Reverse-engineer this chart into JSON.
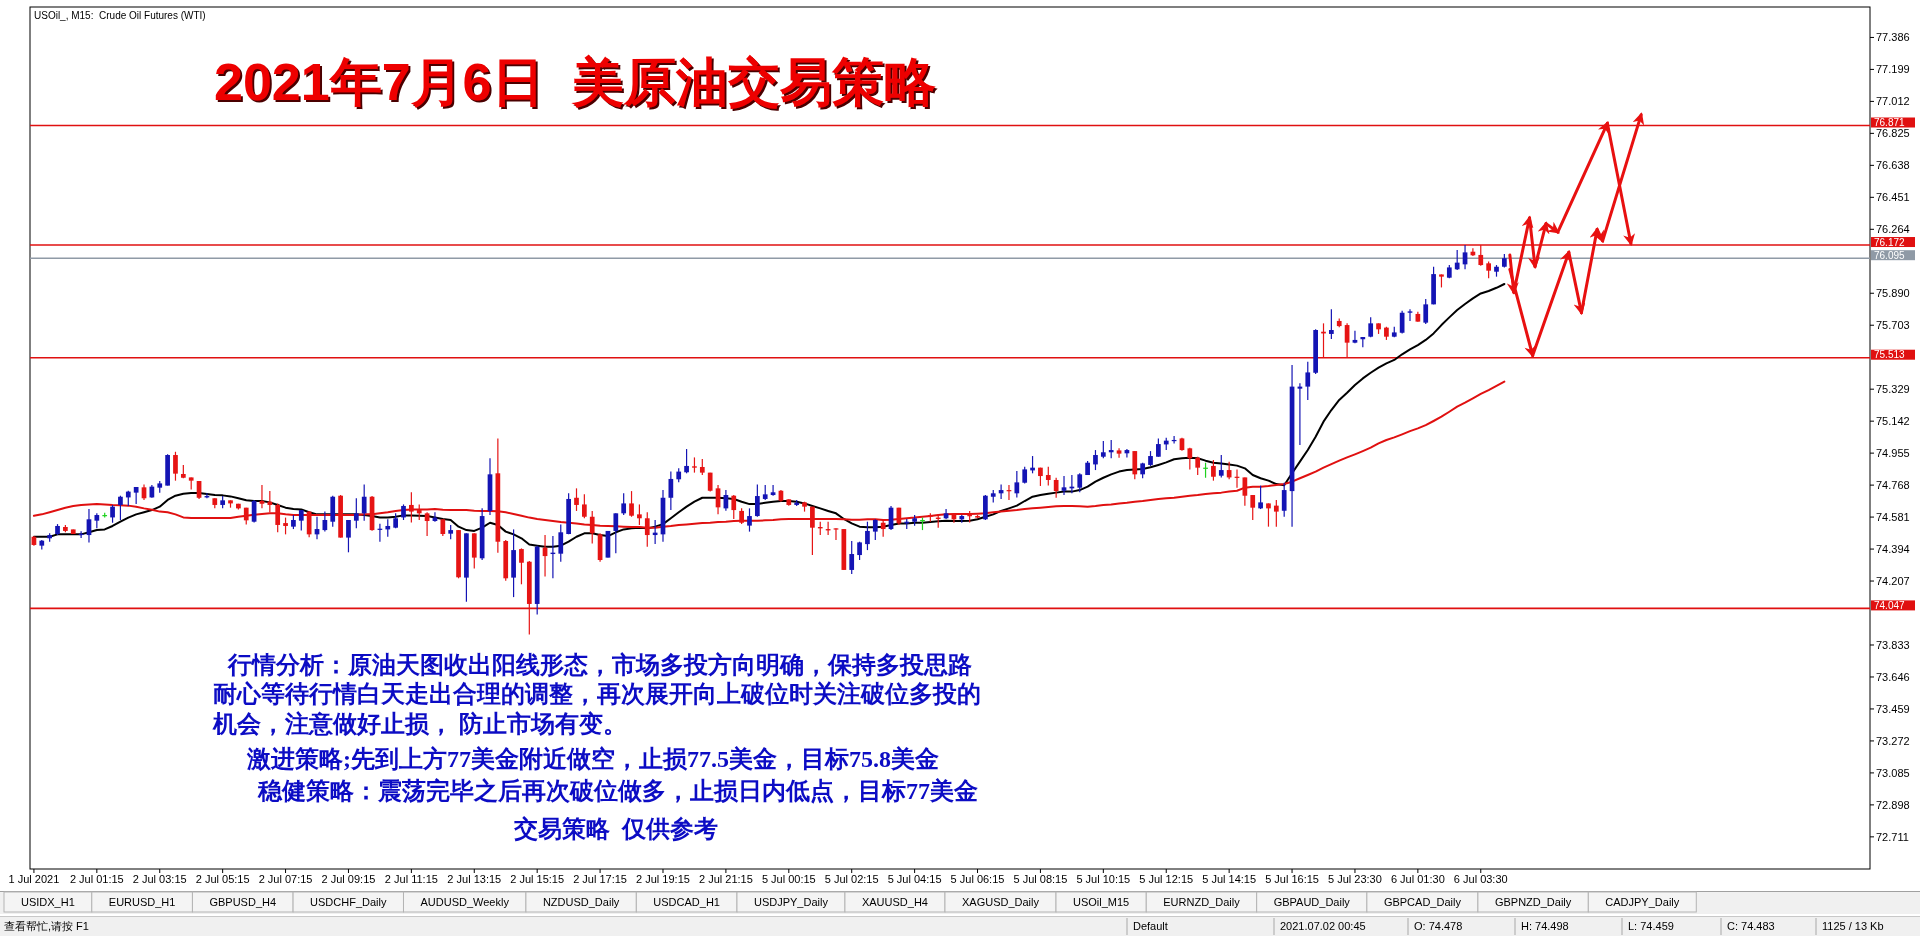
{
  "chart_data": {
    "type": "candlestick",
    "title": "2021年7月6日  美原油交易策略",
    "subtitle": "USOil_, M15:  Crude Oil Futures (WTI)",
    "categories": [
      "1 Jul 2021",
      null,
      null,
      null,
      null,
      null,
      null,
      null,
      "2 Jul 01:15",
      null,
      null,
      null,
      null,
      null,
      null,
      null,
      "2 Jul 03:15",
      null,
      null,
      null,
      null,
      null,
      null,
      null,
      "2 Jul 05:15",
      null,
      null,
      null,
      null,
      null,
      null,
      null,
      "2 Jul 07:15",
      null,
      null,
      null,
      null,
      null,
      null,
      null,
      "2 Jul 09:15",
      null,
      null,
      null,
      null,
      null,
      null,
      null,
      "2 Jul 11:15",
      null,
      null,
      null,
      null,
      null,
      null,
      null,
      "2 Jul 13:15",
      null,
      null,
      null,
      null,
      null,
      null,
      null,
      "2 Jul 15:15",
      null,
      null,
      null,
      null,
      null,
      null,
      null,
      "2 Jul 17:15",
      null,
      null,
      null,
      null,
      null,
      null,
      null,
      "2 Jul 19:15",
      null,
      null,
      null,
      null,
      null,
      null,
      null,
      "2 Jul 21:15",
      null,
      null,
      null,
      null,
      null,
      null,
      null,
      "5 Jul 00:15",
      null,
      null,
      null,
      null,
      null,
      null,
      null,
      "5 Jul 02:15",
      null,
      null,
      null,
      null,
      null,
      null,
      null,
      "5 Jul 04:15",
      null,
      null,
      null,
      null,
      null,
      null,
      null,
      "5 Jul 06:15",
      null,
      null,
      null,
      null,
      null,
      null,
      null,
      "5 Jul 08:15",
      null,
      null,
      null,
      null,
      null,
      null,
      null,
      "5 Jul 10:15",
      null,
      null,
      null,
      null,
      null,
      null,
      null,
      "5 Jul 12:15",
      null,
      null,
      null,
      null,
      null,
      null,
      null,
      "5 Jul 14:15",
      null,
      null,
      null,
      null,
      null,
      null,
      null,
      "5 Jul 16:15",
      null,
      null,
      null,
      null,
      null,
      null,
      null,
      "5 Jul 23:30",
      null,
      null,
      null,
      null,
      null,
      null,
      null,
      "6 Jul 01:30",
      null,
      null,
      null,
      null,
      null,
      null,
      null,
      "6 Jul 03:30",
      null,
      null,
      null,
      null,
      null,
      null,
      null,
      null,
      null,
      null,
      null,
      null,
      null,
      null,
      null,
      null,
      null,
      null,
      null,
      null,
      null,
      null,
      null,
      null,
      null,
      null,
      null,
      null,
      null,
      null,
      null,
      null,
      null,
      null,
      null,
      null,
      null,
      null,
      null,
      null,
      null,
      null,
      null,
      null,
      null,
      null,
      null,
      null,
      null
    ],
    "ohlc": [
      [
        74.466,
        74.47,
        74.414,
        74.418
      ],
      [
        74.414,
        74.447,
        74.392,
        74.443
      ],
      [
        74.457,
        74.486,
        74.437,
        74.476
      ],
      [
        74.482,
        74.54,
        74.476,
        74.529
      ],
      [
        74.523,
        74.535,
        74.492,
        74.5
      ],
      [
        74.509,
        74.509,
        74.482,
        74.482
      ],
      [
        74.478,
        74.498,
        74.459,
        74.483
      ],
      [
        74.476,
        74.628,
        74.433,
        74.568
      ],
      [
        74.56,
        74.603,
        74.515,
        74.593
      ],
      [
        74.593,
        74.607,
        74.578,
        74.593
      ],
      [
        74.579,
        74.652,
        74.548,
        74.642
      ],
      [
        74.652,
        74.706,
        74.564,
        74.7
      ],
      [
        74.696,
        74.735,
        74.646,
        74.73
      ],
      [
        74.724,
        74.757,
        74.657,
        74.757
      ],
      [
        74.755,
        74.772,
        74.681,
        74.691
      ],
      [
        74.696,
        74.768,
        74.694,
        74.759
      ],
      [
        74.753,
        74.792,
        74.724,
        74.778
      ],
      [
        74.765,
        74.948,
        74.765,
        74.944
      ],
      [
        74.944,
        74.963,
        74.794,
        74.835
      ],
      [
        74.833,
        74.886,
        74.808,
        74.811
      ],
      [
        74.813,
        74.813,
        74.743,
        74.794
      ],
      [
        74.792,
        74.792,
        74.687,
        74.694
      ],
      [
        74.696,
        74.72,
        74.691,
        74.704
      ],
      [
        74.691,
        74.691,
        74.632,
        74.652
      ],
      [
        74.652,
        74.704,
        74.632,
        74.679
      ],
      [
        74.679,
        74.679,
        74.636,
        74.661
      ],
      [
        74.659,
        74.659,
        74.626,
        74.632
      ],
      [
        74.636,
        74.636,
        74.538,
        74.562
      ],
      [
        74.554,
        74.681,
        74.55,
        74.675
      ],
      [
        74.675,
        74.768,
        74.632,
        74.659
      ],
      [
        74.671,
        74.733,
        74.609,
        74.652
      ],
      [
        74.652,
        74.661,
        74.492,
        74.535
      ],
      [
        74.546,
        74.578,
        74.48,
        74.529
      ],
      [
        74.525,
        74.593,
        74.511,
        74.564
      ],
      [
        74.56,
        74.622,
        74.503,
        74.622
      ],
      [
        74.613,
        74.617,
        74.463,
        74.48
      ],
      [
        74.48,
        74.583,
        74.451,
        74.511
      ],
      [
        74.505,
        74.613,
        74.496,
        74.564
      ],
      [
        74.554,
        74.706,
        74.525,
        74.7
      ],
      [
        74.706,
        74.71,
        74.461,
        74.461
      ],
      [
        74.461,
        74.564,
        74.375,
        74.564
      ],
      [
        74.56,
        74.691,
        74.515,
        74.603
      ],
      [
        74.603,
        74.772,
        74.56,
        74.7
      ],
      [
        74.7,
        74.704,
        74.501,
        74.505
      ],
      [
        74.507,
        74.542,
        74.437,
        74.513
      ],
      [
        74.509,
        74.568,
        74.466,
        74.529
      ],
      [
        74.519,
        74.603,
        74.515,
        74.574
      ],
      [
        74.579,
        74.655,
        74.564,
        74.646
      ],
      [
        74.652,
        74.726,
        74.55,
        74.613
      ],
      [
        74.622,
        74.655,
        74.564,
        74.603
      ],
      [
        74.603,
        74.609,
        74.47,
        74.558
      ],
      [
        74.558,
        74.609,
        74.554,
        74.578
      ],
      [
        74.568,
        74.568,
        74.47,
        74.482
      ],
      [
        74.484,
        74.535,
        74.451,
        74.505
      ],
      [
        74.505,
        74.505,
        74.223,
        74.229
      ],
      [
        74.227,
        74.486,
        74.086,
        74.486
      ],
      [
        74.486,
        74.486,
        74.281,
        74.344
      ],
      [
        74.34,
        74.632,
        74.33,
        74.587
      ],
      [
        74.617,
        74.925,
        74.593,
        74.831
      ],
      [
        74.837,
        75.041,
        74.373,
        74.437
      ],
      [
        74.441,
        74.447,
        74.209,
        74.223
      ],
      [
        74.227,
        74.509,
        74.113,
        74.388
      ],
      [
        74.394,
        74.398,
        74.188,
        74.314
      ],
      [
        74.32,
        74.324,
        73.895,
        74.073
      ],
      [
        74.073,
        74.414,
        74.012,
        74.408
      ],
      [
        74.402,
        74.476,
        74.233,
        74.353
      ],
      [
        74.365,
        74.47,
        74.223,
        74.373
      ],
      [
        74.367,
        74.538,
        74.32,
        74.492
      ],
      [
        74.482,
        74.72,
        74.48,
        74.687
      ],
      [
        74.694,
        74.749,
        74.617,
        74.652
      ],
      [
        74.655,
        74.714,
        74.574,
        74.583
      ],
      [
        74.583,
        74.617,
        74.427,
        74.486
      ],
      [
        74.48,
        74.486,
        74.32,
        74.33
      ],
      [
        74.344,
        74.5,
        74.344,
        74.5
      ],
      [
        74.5,
        74.603,
        74.369,
        74.603
      ],
      [
        74.603,
        74.72,
        74.593,
        74.661
      ],
      [
        74.661,
        74.733,
        74.583,
        74.589
      ],
      [
        74.597,
        74.655,
        74.535,
        74.574
      ],
      [
        74.574,
        74.609,
        74.408,
        74.476
      ],
      [
        74.476,
        74.564,
        74.423,
        74.49
      ],
      [
        74.48,
        74.739,
        74.437,
        74.694
      ],
      [
        74.694,
        74.847,
        74.622,
        74.804
      ],
      [
        74.802,
        74.866,
        74.784,
        74.847
      ],
      [
        74.843,
        74.979,
        74.837,
        74.88
      ],
      [
        74.878,
        74.93,
        74.841,
        74.87
      ],
      [
        74.874,
        74.921,
        74.827,
        74.841
      ],
      [
        74.841,
        74.841,
        74.73,
        74.735
      ],
      [
        74.749,
        74.768,
        74.597,
        74.638
      ],
      [
        74.632,
        74.739,
        74.618,
        74.71
      ],
      [
        74.706,
        74.71,
        74.57,
        74.622
      ],
      [
        74.617,
        74.632,
        74.54,
        74.548
      ],
      [
        74.531,
        74.632,
        74.496,
        74.587
      ],
      [
        74.587,
        74.772,
        74.583,
        74.704
      ],
      [
        74.687,
        74.768,
        74.681,
        74.714
      ],
      [
        74.71,
        74.768,
        74.706,
        74.726
      ],
      [
        74.735,
        74.739,
        74.671,
        74.677
      ],
      [
        74.685,
        74.685,
        74.648,
        74.652
      ],
      [
        74.652,
        74.681,
        74.646,
        74.665
      ],
      [
        74.667,
        74.671,
        74.613,
        74.642
      ],
      [
        74.642,
        74.642,
        74.359,
        74.519
      ],
      [
        74.523,
        74.554,
        74.476,
        74.515
      ],
      [
        74.511,
        74.554,
        74.476,
        74.503
      ],
      [
        74.515,
        74.515,
        74.447,
        74.509
      ],
      [
        74.511,
        74.511,
        74.272,
        74.272
      ],
      [
        74.272,
        74.441,
        74.248,
        74.365
      ],
      [
        74.359,
        74.437,
        74.33,
        74.433
      ],
      [
        74.423,
        74.554,
        74.388,
        74.5
      ],
      [
        74.496,
        74.568,
        74.447,
        74.564
      ],
      [
        74.548,
        74.568,
        74.466,
        74.511
      ],
      [
        74.511,
        74.646,
        74.505,
        74.636
      ],
      [
        74.636,
        74.636,
        74.535,
        74.544
      ],
      [
        74.544,
        74.57,
        74.511,
        74.554
      ],
      [
        74.554,
        74.593,
        74.531,
        74.574
      ],
      [
        74.564,
        74.578,
        74.505,
        74.564
      ],
      [
        74.593,
        74.603,
        74.554,
        74.583
      ],
      [
        74.578,
        74.597,
        74.519,
        74.57
      ],
      [
        74.574,
        74.628,
        74.57,
        74.603
      ],
      [
        74.597,
        74.603,
        74.548,
        74.568
      ],
      [
        74.568,
        74.593,
        74.548,
        74.587
      ],
      [
        74.593,
        74.617,
        74.55,
        74.587
      ],
      [
        74.587,
        74.593,
        74.574,
        74.578
      ],
      [
        74.568,
        74.71,
        74.564,
        74.706
      ],
      [
        74.7,
        74.739,
        74.667,
        74.72
      ],
      [
        74.72,
        74.772,
        74.687,
        74.739
      ],
      [
        74.739,
        74.768,
        74.681,
        74.733
      ],
      [
        74.72,
        74.85,
        74.696,
        74.784
      ],
      [
        74.782,
        74.876,
        74.778,
        74.86
      ],
      [
        74.854,
        74.938,
        74.837,
        74.87
      ],
      [
        74.87,
        74.87,
        74.763,
        74.821
      ],
      [
        74.827,
        74.876,
        74.765,
        74.798
      ],
      [
        74.798,
        74.811,
        74.694,
        74.733
      ],
      [
        74.735,
        74.821,
        74.71,
        74.755
      ],
      [
        74.749,
        74.827,
        74.72,
        74.759
      ],
      [
        74.753,
        74.837,
        74.726,
        74.831
      ],
      [
        74.827,
        74.909,
        74.827,
        74.899
      ],
      [
        74.889,
        74.973,
        74.856,
        74.944
      ],
      [
        74.934,
        75.026,
        74.925,
        74.96
      ],
      [
        74.96,
        75.032,
        74.925,
        74.973
      ],
      [
        74.971,
        74.983,
        74.928,
        74.952
      ],
      [
        74.954,
        74.979,
        74.93,
        74.973
      ],
      [
        74.967,
        74.967,
        74.802,
        74.831
      ],
      [
        74.831,
        74.899,
        74.808,
        74.895
      ],
      [
        74.886,
        74.967,
        74.88,
        74.938
      ],
      [
        74.934,
        75.041,
        74.934,
        75.008
      ],
      [
        75.006,
        75.045,
        74.973,
        75.028
      ],
      [
        75.026,
        75.055,
        75.012,
        75.032
      ],
      [
        75.041,
        75.045,
        74.969,
        74.973
      ],
      [
        74.983,
        74.987,
        74.86,
        74.925
      ],
      [
        74.928,
        74.934,
        74.827,
        74.87
      ],
      [
        74.87,
        74.899,
        74.811,
        74.87
      ],
      [
        74.88,
        74.915,
        74.794,
        74.817
      ],
      [
        74.823,
        74.944,
        74.813,
        74.856
      ],
      [
        74.856,
        74.905,
        74.802,
        74.813
      ],
      [
        74.817,
        74.86,
        74.753,
        74.813
      ],
      [
        74.813,
        74.813,
        74.648,
        74.706
      ],
      [
        74.71,
        74.71,
        74.564,
        74.636
      ],
      [
        74.632,
        74.765,
        74.628,
        74.667
      ],
      [
        74.661,
        74.661,
        74.525,
        74.632
      ],
      [
        74.648,
        74.681,
        74.525,
        74.613
      ],
      [
        74.618,
        74.782,
        74.583,
        74.739
      ],
      [
        74.733,
        75.47,
        74.525,
        75.344
      ],
      [
        75.332,
        75.363,
        75.003,
        75.344
      ],
      [
        75.344,
        75.49,
        75.266,
        75.427
      ],
      [
        75.425,
        75.679,
        75.418,
        75.675
      ],
      [
        75.665,
        75.714,
        75.513,
        75.655
      ],
      [
        75.652,
        75.796,
        75.622,
        75.675
      ],
      [
        75.728,
        75.743,
        75.691,
        75.698
      ],
      [
        75.704,
        75.714,
        75.513,
        75.601
      ],
      [
        75.601,
        75.671,
        75.597,
        75.617
      ],
      [
        75.621,
        75.634,
        75.574,
        75.634
      ],
      [
        75.636,
        75.749,
        75.632,
        75.714
      ],
      [
        75.714,
        75.714,
        75.652,
        75.679
      ],
      [
        75.689,
        75.694,
        75.617,
        75.636
      ],
      [
        75.636,
        75.694,
        75.632,
        75.661
      ],
      [
        75.659,
        75.788,
        75.655,
        75.776
      ],
      [
        75.776,
        75.796,
        75.728,
        75.784
      ],
      [
        75.769,
        75.782,
        75.724,
        75.724
      ],
      [
        75.718,
        75.856,
        75.71,
        75.825
      ],
      [
        75.825,
        76.045,
        75.825,
        76.002
      ],
      [
        76.0,
        76.0,
        75.924,
        75.987
      ],
      [
        75.981,
        76.055,
        75.977,
        76.041
      ],
      [
        76.03,
        76.143,
        76.026,
        76.069
      ],
      [
        76.059,
        76.172,
        76.03,
        76.129
      ],
      [
        76.133,
        76.153,
        76.108,
        76.112
      ],
      [
        76.114,
        76.172,
        76.051,
        76.055
      ],
      [
        76.065,
        76.075,
        75.977,
        76.022
      ],
      [
        76.016,
        76.055,
        75.987,
        76.045
      ],
      [
        76.045,
        76.119,
        76.041,
        76.095
      ],
      null,
      null,
      null,
      null,
      null,
      null,
      null,
      null,
      null,
      null,
      null,
      null,
      null,
      null,
      null,
      null,
      null,
      null,
      null,
      null,
      null,
      null,
      null,
      null,
      null,
      null,
      null,
      null,
      null,
      null,
      null,
      null,
      null,
      null,
      null,
      null,
      null,
      null,
      null,
      null,
      null,
      null,
      null,
      null,
      null,
      null
    ],
    "colors": [
      "#e61414",
      "#1414b4",
      "#1414b4",
      "#1414b4",
      "#e61414",
      "#e61414",
      "#1414b4",
      "#1414b4",
      "#1414b4",
      "#1ed21e",
      "#1414b4",
      "#1414b4",
      "#1414b4",
      "#1414b4",
      "#e61414",
      "#1414b4",
      "#1414b4",
      "#1414b4",
      "#e61414",
      "#e61414",
      "#e61414",
      "#e61414",
      "#1414b4",
      "#e61414",
      "#1414b4",
      "#e61414",
      "#e61414",
      "#e61414",
      "#1414b4",
      "#e61414",
      "#e61414",
      "#e61414",
      "#e61414",
      "#1414b4",
      "#1414b4",
      "#e61414",
      "#1414b4",
      "#1414b4",
      "#1414b4",
      "#e61414",
      "#1414b4",
      "#1414b4",
      "#1414b4",
      "#e61414",
      "#1414b4",
      "#1414b4",
      "#1414b4",
      "#1414b4",
      "#e61414",
      "#e61414",
      "#e61414",
      "#1414b4",
      "#e61414",
      "#1414b4",
      "#e61414",
      "#1414b4",
      "#e61414",
      "#1414b4",
      "#1414b4",
      "#e61414",
      "#e61414",
      "#1414b4",
      "#e61414",
      "#e61414",
      "#1414b4",
      "#e61414",
      "#1414b4",
      "#1414b4",
      "#1414b4",
      "#e61414",
      "#e61414",
      "#e61414",
      "#e61414",
      "#1414b4",
      "#1414b4",
      "#1414b4",
      "#e61414",
      "#e61414",
      "#e61414",
      "#1414b4",
      "#1414b4",
      "#1414b4",
      "#1414b4",
      "#1414b4",
      "#e61414",
      "#e61414",
      "#e61414",
      "#e61414",
      "#1414b4",
      "#e61414",
      "#e61414",
      "#1414b4",
      "#1414b4",
      "#1414b4",
      "#1414b4",
      "#e61414",
      "#e61414",
      "#1414b4",
      "#e61414",
      "#e61414",
      "#e61414",
      "#e61414",
      "#e61414",
      "#e61414",
      "#1414b4",
      "#1414b4",
      "#1414b4",
      "#1414b4",
      "#e61414",
      "#1414b4",
      "#e61414",
      "#1414b4",
      "#1414b4",
      "#1ed21e",
      "#e61414",
      "#e61414",
      "#1414b4",
      "#e61414",
      "#1414b4",
      "#e61414",
      "#e61414",
      "#1414b4",
      "#1414b4",
      "#1414b4",
      "#e61414",
      "#1414b4",
      "#1414b4",
      "#1414b4",
      "#e61414",
      "#e61414",
      "#e61414",
      "#1414b4",
      "#1414b4",
      "#1414b4",
      "#1414b4",
      "#1414b4",
      "#1414b4",
      "#1414b4",
      "#e61414",
      "#1414b4",
      "#e61414",
      "#1414b4",
      "#1414b4",
      "#1414b4",
      "#1414b4",
      "#1414b4",
      "#e61414",
      "#e61414",
      "#e61414",
      "#1ed21e",
      "#e61414",
      "#1414b4",
      "#e61414",
      "#e61414",
      "#e61414",
      "#e61414",
      "#1414b4",
      "#e61414",
      "#e61414",
      "#1414b4",
      "#1414b4",
      "#1414b4",
      "#1414b4",
      "#1414b4",
      "#e61414",
      "#1414b4",
      "#e61414",
      "#e61414",
      "#1414b4",
      "#1414b4",
      "#1414b4",
      "#e61414",
      "#e61414",
      "#1414b4",
      "#1414b4",
      "#1414b4",
      "#e61414",
      "#1414b4",
      "#1414b4",
      "#e61414",
      "#1414b4",
      "#1414b4",
      "#1414b4",
      "#e61414",
      "#e61414",
      "#e61414",
      "#1414b4",
      "#1414b4",
      null,
      null,
      null,
      null,
      null,
      null,
      null,
      null,
      null,
      null,
      null,
      null,
      null,
      null,
      null,
      null,
      null,
      null,
      null,
      null,
      null,
      null,
      null,
      null,
      null,
      null,
      null,
      null,
      null,
      null,
      null,
      null,
      null,
      null,
      null,
      null,
      null,
      null,
      null,
      null,
      null,
      null,
      null,
      null,
      null,
      null
    ],
    "series": [
      {
        "type": "line",
        "color": "#000000",
        "values": [
          74.466,
          74.466,
          74.466,
          74.48,
          74.48,
          74.48,
          74.48,
          74.492,
          74.505,
          74.509,
          74.529,
          74.554,
          74.578,
          74.597,
          74.609,
          74.622,
          74.642,
          74.681,
          74.706,
          74.718,
          74.722,
          74.722,
          74.716,
          74.71,
          74.708,
          74.702,
          74.691,
          74.679,
          74.675,
          74.675,
          74.667,
          74.652,
          74.636,
          74.628,
          74.626,
          74.609,
          74.597,
          74.597,
          74.597,
          74.597,
          74.597,
          74.597,
          74.593,
          74.587,
          74.578,
          74.578,
          74.583,
          74.591,
          74.591,
          74.589,
          74.587,
          74.578,
          74.57,
          74.564,
          74.525,
          74.505,
          74.5,
          74.519,
          74.548,
          74.535,
          74.496,
          74.48,
          74.457,
          74.421,
          74.414,
          74.408,
          74.408,
          74.414,
          74.437,
          74.466,
          74.486,
          74.486,
          74.476,
          74.47,
          74.492,
          74.509,
          74.515,
          74.519,
          74.515,
          74.525,
          74.54,
          74.574,
          74.609,
          74.642,
          74.671,
          74.694,
          74.694,
          74.694,
          74.691,
          74.687,
          74.671,
          74.657,
          74.657,
          74.665,
          74.671,
          74.675,
          74.675,
          74.671,
          74.661,
          74.646,
          74.632,
          74.617,
          74.603,
          74.57,
          74.544,
          74.525,
          74.521,
          74.521,
          74.525,
          74.535,
          74.544,
          74.544,
          74.548,
          74.548,
          74.552,
          74.556,
          74.56,
          74.558,
          74.558,
          74.56,
          74.568,
          74.583,
          74.597,
          74.617,
          74.632,
          74.648,
          74.675,
          74.7,
          74.71,
          74.718,
          74.724,
          74.73,
          74.73,
          74.739,
          74.759,
          74.788,
          74.811,
          74.831,
          74.847,
          74.856,
          74.86,
          74.862,
          74.872,
          74.886,
          74.901,
          74.919,
          74.925,
          74.928,
          74.925,
          74.911,
          74.899,
          74.895,
          74.889,
          74.882,
          74.866,
          74.827,
          74.808,
          74.794,
          74.774,
          74.767,
          74.837,
          74.905,
          74.973,
          75.051,
          75.139,
          75.207,
          75.266,
          75.308,
          75.353,
          75.392,
          75.425,
          75.455,
          75.48,
          75.5,
          75.533,
          75.562,
          75.587,
          75.617,
          75.655,
          75.704,
          75.749,
          75.792,
          75.827,
          75.86,
          75.889,
          75.903,
          75.922,
          75.944,
          null,
          null,
          null,
          null,
          null,
          null,
          null,
          null,
          null,
          null,
          null,
          null,
          null,
          null,
          null,
          null,
          null,
          null,
          null,
          null,
          null,
          null,
          null,
          null,
          null,
          null,
          null,
          null,
          null,
          null,
          null,
          null,
          null,
          null,
          null,
          null,
          null,
          null,
          null,
          null,
          null,
          null,
          null,
          null,
          null,
          null
        ]
      },
      {
        "type": "line",
        "color": "#e01010",
        "values": [
          74.589,
          74.597,
          74.609,
          74.622,
          74.636,
          74.646,
          74.652,
          74.655,
          74.657,
          74.655,
          74.652,
          74.65,
          74.648,
          74.642,
          74.632,
          74.624,
          74.613,
          74.609,
          74.597,
          74.579,
          74.575,
          74.575,
          74.575,
          74.575,
          74.575,
          74.575,
          74.583,
          74.589,
          74.595,
          74.599,
          74.603,
          74.603,
          74.597,
          74.593,
          74.593,
          74.593,
          74.593,
          74.593,
          74.593,
          74.593,
          74.593,
          74.593,
          74.597,
          74.597,
          74.603,
          74.609,
          74.617,
          74.622,
          74.626,
          74.626,
          74.626,
          74.628,
          74.624,
          74.622,
          74.622,
          74.622,
          74.618,
          74.617,
          74.617,
          74.615,
          74.609,
          74.599,
          74.589,
          74.578,
          74.57,
          74.564,
          74.558,
          74.552,
          74.548,
          74.544,
          74.538,
          74.535,
          74.531,
          74.529,
          74.527,
          74.525,
          74.523,
          74.523,
          74.519,
          74.519,
          74.525,
          74.529,
          74.535,
          74.538,
          74.542,
          74.546,
          74.548,
          74.552,
          74.554,
          74.558,
          74.56,
          74.56,
          74.56,
          74.562,
          74.564,
          74.568,
          74.57,
          74.57,
          74.57,
          74.57,
          74.57,
          74.57,
          74.57,
          74.568,
          74.566,
          74.566,
          74.568,
          74.568,
          74.564,
          74.566,
          74.57,
          74.574,
          74.578,
          74.583,
          74.587,
          74.593,
          74.597,
          74.599,
          74.599,
          74.599,
          74.601,
          74.603,
          74.609,
          74.613,
          74.618,
          74.622,
          74.628,
          74.632,
          74.636,
          74.64,
          74.644,
          74.646,
          74.646,
          74.644,
          74.642,
          74.646,
          74.652,
          74.655,
          74.661,
          74.665,
          74.671,
          74.675,
          74.681,
          74.687,
          74.691,
          74.694,
          74.7,
          74.706,
          74.71,
          74.716,
          74.72,
          74.724,
          74.73,
          74.735,
          74.753,
          74.758,
          74.759,
          74.763,
          74.769,
          74.774,
          74.788,
          74.808,
          74.827,
          74.847,
          74.87,
          74.891,
          74.911,
          74.93,
          74.948,
          74.967,
          74.987,
          75.012,
          75.032,
          75.047,
          75.065,
          75.084,
          75.1,
          75.119,
          75.143,
          75.168,
          75.197,
          75.227,
          75.25,
          75.275,
          75.301,
          75.324,
          75.349,
          75.373,
          null,
          null,
          null,
          null,
          null,
          null,
          null,
          null,
          null,
          null,
          null,
          null,
          null,
          null,
          null,
          null,
          null,
          null,
          null,
          null,
          null,
          null,
          null,
          null,
          null,
          null,
          null,
          null,
          null,
          null,
          null,
          null,
          null,
          null,
          null,
          null,
          null,
          null,
          null,
          null,
          null,
          null,
          null,
          null,
          null,
          null
        ]
      }
    ],
    "ylim": [
      72.523,
      77.564
    ],
    "yticks": [
      77.386,
      77.199,
      77.012,
      76.825,
      76.638,
      76.451,
      76.264,
      {
        "value": 75.89,
        "label": "75.890"
      },
      75.703,
      75.329,
      75.142,
      74.955,
      74.768,
      74.581,
      74.394,
      74.207,
      73.833,
      73.646,
      73.459,
      73.272,
      73.085,
      72.898,
      72.711
    ],
    "ref_lines": [
      {
        "axis": "y",
        "value": 76.871,
        "label": "76.871",
        "color": "#e01010"
      },
      {
        "axis": "y",
        "value": 76.172,
        "label": "76.172",
        "color": "#e01010"
      },
      {
        "axis": "y",
        "value": 76.095,
        "label": "76.095",
        "color": "#8f9aa6"
      },
      {
        "axis": "y",
        "value": 75.513,
        "label": "75.513",
        "color": "#e01010"
      },
      {
        "axis": "y",
        "value": 74.047,
        "label": "74.047",
        "color": "#e01010"
      }
    ],
    "annotations": [
      "行情分析：原油天图收出阳线形态，市场多投方向明确，保持多投思路",
      "耐心等待行情白天走出合理的调整，再次展开向上破位时关注破位多投的",
      "机会，注意做好止损， 防止市场有变。",
      "激进策略;先到上方77美金附近做空，止损77.5美金，目标75.8美金",
      "稳健策略：震荡完毕之后再次破位做多，止损日内低点，目标77美金",
      "交易策略  仅供参考",
      "USIDX_H1",
      "EURUSD_H1",
      "GBPUSD_H4",
      "USDCHF_Daily",
      "AUDUSD_Weekly",
      "NZDUSD_Daily",
      "USDCAD_H1",
      "USDJPY_Daily",
      "XAUUSD_H4",
      "XAGUSD_Daily",
      "USOil_M15",
      "EURNZD_Daily",
      "GBPAUD_Daily",
      "GBPCAD_Daily",
      "GBPNZD_Daily",
      "CADJPY_Daily",
      "查看帮忙,请按 F1",
      "Default",
      "2021.07.02 00:45",
      "O: 74.478",
      "H: 74.498",
      "L: 74.459",
      "C: 74.483",
      "1125 / 13 Kb"
    ]
  }
}
